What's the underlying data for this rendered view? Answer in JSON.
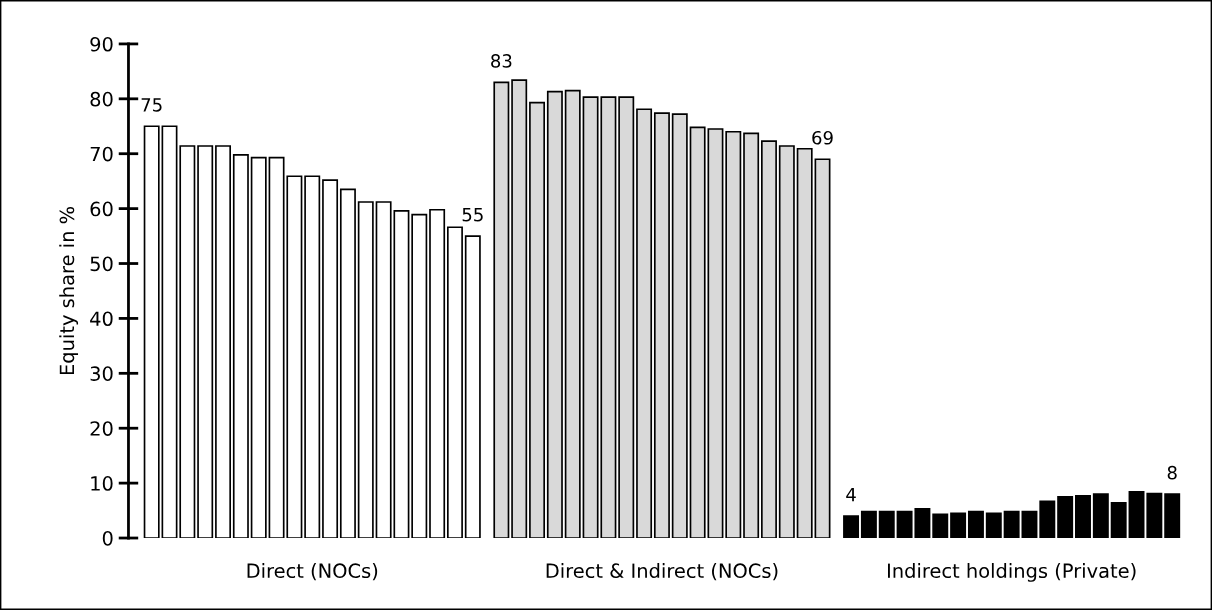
{
  "chart_data": {
    "type": "bar",
    "ylabel": "Equity share in %",
    "categories": [
      null,
      null,
      null,
      null,
      null,
      null,
      null,
      null,
      null,
      "Direct (NOCs)",
      null,
      null,
      null,
      null,
      null,
      null,
      null,
      null,
      null,
      null,
      null,
      null,
      null,
      null,
      null,
      null,
      null,
      null,
      "Direct & Indirect (NOCs)",
      null,
      null,
      null,
      null,
      null,
      null,
      null,
      null,
      null,
      null,
      null,
      null,
      null,
      null,
      null,
      null,
      null,
      null,
      "Indirect holdings (Private)",
      null,
      null,
      null,
      null,
      null,
      null,
      null,
      null,
      null
    ],
    "values": [
      75,
      75,
      71.4,
      71.4,
      71.4,
      69.8,
      69.3,
      69.3,
      65.9,
      65.9,
      65.2,
      63.5,
      61.2,
      61.2,
      59.6,
      58.9,
      59.8,
      56.6,
      55,
      83,
      83.4,
      79.3,
      81.3,
      81.5,
      80.3,
      80.3,
      80.3,
      78.1,
      77.4,
      77.2,
      74.8,
      74.5,
      74.0,
      73.7,
      72.3,
      71.4,
      70.9,
      69,
      4,
      4.8,
      4.8,
      4.8,
      5.3,
      4.3,
      4.5,
      4.8,
      4.5,
      4.8,
      4.8,
      6.7,
      7.5,
      7.7,
      8.0,
      6.4,
      8.4,
      8.1,
      8
    ],
    "colors": [
      "#ffffff",
      "#ffffff",
      "#ffffff",
      "#ffffff",
      "#ffffff",
      "#ffffff",
      "#ffffff",
      "#ffffff",
      "#ffffff",
      "#ffffff",
      "#ffffff",
      "#ffffff",
      "#ffffff",
      "#ffffff",
      "#ffffff",
      "#ffffff",
      "#ffffff",
      "#ffffff",
      "#ffffff",
      "#d9d9d9",
      "#d9d9d9",
      "#d9d9d9",
      "#d9d9d9",
      "#d9d9d9",
      "#d9d9d9",
      "#d9d9d9",
      "#d9d9d9",
      "#d9d9d9",
      "#d9d9d9",
      "#d9d9d9",
      "#d9d9d9",
      "#d9d9d9",
      "#d9d9d9",
      "#d9d9d9",
      "#d9d9d9",
      "#d9d9d9",
      "#d9d9d9",
      "#d9d9d9",
      "#000000",
      "#000000",
      "#000000",
      "#000000",
      "#000000",
      "#000000",
      "#000000",
      "#000000",
      "#000000",
      "#000000",
      "#000000",
      "#000000",
      "#000000",
      "#000000",
      "#000000",
      "#000000",
      "#000000",
      "#000000",
      "#000000"
    ],
    "value_labels": [
      "75",
      null,
      null,
      null,
      null,
      null,
      null,
      null,
      null,
      null,
      null,
      null,
      null,
      null,
      null,
      null,
      null,
      null,
      "55",
      "83",
      null,
      null,
      null,
      null,
      null,
      null,
      null,
      null,
      null,
      null,
      null,
      null,
      null,
      null,
      null,
      null,
      null,
      "69",
      "4",
      null,
      null,
      null,
      null,
      null,
      null,
      null,
      null,
      null,
      null,
      null,
      null,
      null,
      null,
      null,
      null,
      null,
      "8"
    ],
    "ylim": [
      0,
      90
    ],
    "yticks": [
      0,
      10,
      20,
      30,
      40,
      50,
      60,
      70,
      80,
      90
    ],
    "grid": false,
    "legend": false
  }
}
